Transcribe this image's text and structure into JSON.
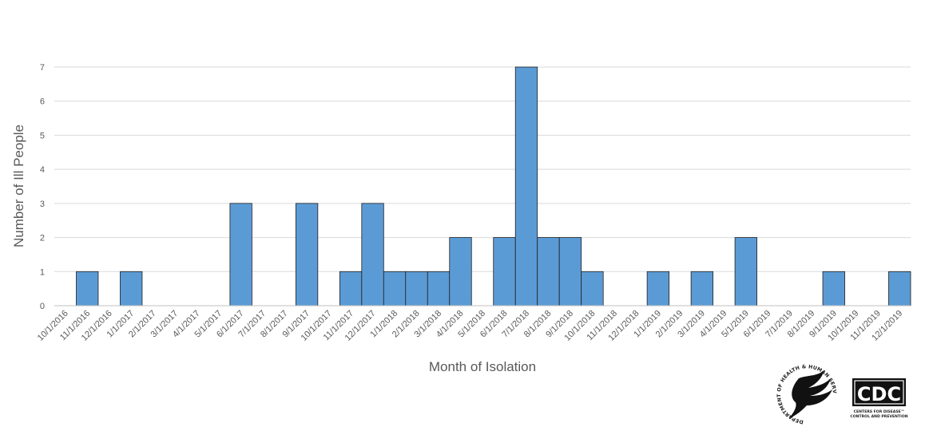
{
  "chart_data": {
    "type": "bar",
    "title": "",
    "xlabel": "Month of Isolation",
    "ylabel": "Number of Ill People",
    "ylim": [
      0,
      7
    ],
    "yticks": [
      0,
      1,
      2,
      3,
      4,
      5,
      6,
      7
    ],
    "grid": true,
    "bar_color": "#5b9bd5",
    "categories": [
      "10/1/2016",
      "11/1/2016",
      "12/1/2016",
      "1/1/2017",
      "2/1/2017",
      "3/1/2017",
      "4/1/2017",
      "5/1/2017",
      "6/1/2017",
      "7/1/2017",
      "8/1/2017",
      "9/1/2017",
      "10/1/2017",
      "11/1/2017",
      "12/1/2017",
      "1/1/2018",
      "2/1/2018",
      "3/1/2018",
      "4/1/2018",
      "5/1/2018",
      "6/1/2018",
      "7/1/2018",
      "8/1/2018",
      "9/1/2018",
      "10/1/2018",
      "11/1/2018",
      "12/1/2018",
      "1/1/2019",
      "2/1/2019",
      "3/1/2019",
      "4/1/2019",
      "5/1/2019",
      "6/1/2019",
      "7/1/2019",
      "8/1/2019",
      "9/1/2019",
      "10/1/2019",
      "11/1/2019",
      "12/1/2019"
    ],
    "values": [
      0,
      1,
      0,
      1,
      0,
      0,
      0,
      0,
      3,
      0,
      0,
      3,
      0,
      1,
      3,
      1,
      1,
      1,
      2,
      0,
      2,
      7,
      2,
      2,
      1,
      0,
      0,
      1,
      0,
      1,
      0,
      2,
      0,
      0,
      0,
      1,
      0,
      0,
      1
    ]
  },
  "logos": {
    "hhs_seal_text": "DEPARTMENT OF HEALTH & HUMAN SERVICES·USA",
    "cdc_text": "CDC",
    "cdc_subtext_1": "CENTERS FOR DISEASE™",
    "cdc_subtext_2": "CONTROL AND PREVENTION"
  }
}
